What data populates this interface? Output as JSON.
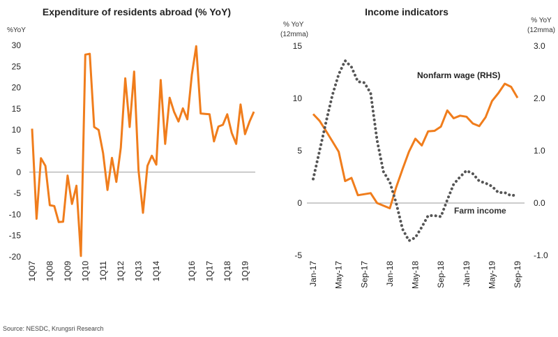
{
  "source": "Source: NESDC, Krungsri Research",
  "chart_data": [
    {
      "type": "line",
      "title": "Expenditure of residents abroad (% YoY)",
      "ylabel": "%YoY",
      "ylim": [
        -20,
        30
      ],
      "yticks": [
        "30",
        "25",
        "20",
        "15",
        "10",
        "5",
        "0",
        "-5",
        "-10",
        "-15",
        "-20"
      ],
      "ytick_values": [
        30,
        25,
        20,
        15,
        10,
        5,
        0,
        -5,
        -10,
        -15,
        -20
      ],
      "xtick_labels": [
        "1Q07",
        "1Q08",
        "1Q09",
        "1Q10",
        "1Q11",
        "1Q12",
        "1Q13",
        "1Q14",
        "1Q16",
        "1Q17",
        "1Q18",
        "1Q19"
      ],
      "xtick_index": [
        0,
        4,
        8,
        12,
        16,
        20,
        24,
        28,
        36,
        40,
        44,
        48
      ],
      "series": [
        {
          "name": "Expenditure of residents abroad",
          "color": "#F07D1C",
          "values": [
            10.3,
            -11.0,
            3.3,
            1.5,
            -7.8,
            -8.0,
            -11.8,
            -11.7,
            -0.8,
            -7.5,
            -3.2,
            -19.8,
            27.8,
            28.0,
            10.7,
            10.0,
            4.5,
            -4.2,
            3.4,
            -2.3,
            5.8,
            22.2,
            10.7,
            23.8,
            0.5,
            -9.6,
            1.5,
            3.9,
            1.8,
            21.8,
            6.7,
            17.6,
            14.3,
            12.0,
            15.1,
            12.5,
            23.0,
            29.8,
            13.9,
            13.8,
            13.7,
            7.3,
            10.8,
            11.2,
            13.7,
            9.3,
            6.7,
            16.0,
            9.0,
            11.9,
            14.3
          ]
        }
      ]
    },
    {
      "type": "line",
      "title": "Income indicators",
      "ylabel_left": "% YoY",
      "ylabel_left_sub": "(12mma)",
      "ylabel_right": "% YoY",
      "ylabel_right_sub": "(12mma)",
      "ylim_left": [
        -5,
        15
      ],
      "ylim_right": [
        -1.0,
        3.0
      ],
      "yticks_left": [
        "15",
        "10",
        "5",
        "0",
        "-5"
      ],
      "ytick_left_values": [
        15,
        10,
        5,
        0,
        -5
      ],
      "yticks_right": [
        "3.0",
        "2.0",
        "1.0",
        "0.0",
        "-1.0"
      ],
      "ytick_right_values": [
        3.0,
        2.0,
        1.0,
        0.0,
        -1.0
      ],
      "xtick_labels": [
        "Jan-17",
        "May-17",
        "Sep-17",
        "Jan-18",
        "May-18",
        "Sep-18",
        "Jan-19",
        "May-19",
        "Sep-19"
      ],
      "xtick_index": [
        0,
        4,
        8,
        12,
        16,
        20,
        24,
        28,
        32
      ],
      "series": [
        {
          "name": "Nonfarm wage (RHS)",
          "axis": "right",
          "style": "solid",
          "color": "#F07D1C",
          "values": [
            1.7,
            1.57,
            1.38,
            1.18,
            0.98,
            0.42,
            0.48,
            0.15,
            0.17,
            0.19,
            0.0,
            -0.05,
            -0.1,
            0.3,
            0.65,
            0.98,
            1.23,
            1.1,
            1.37,
            1.38,
            1.46,
            1.77,
            1.62,
            1.67,
            1.65,
            1.52,
            1.47,
            1.64,
            1.95,
            2.1,
            2.28,
            2.22,
            2.01
          ]
        },
        {
          "name": "Farm income",
          "axis": "left",
          "style": "dotted",
          "color": "#555555",
          "values": [
            2.3,
            5.0,
            7.7,
            10.3,
            12.3,
            13.6,
            13.0,
            11.6,
            11.5,
            10.5,
            6.0,
            3.0,
            2.0,
            0.0,
            -2.5,
            -3.6,
            -3.3,
            -2.3,
            -1.2,
            -1.2,
            -1.3,
            0.3,
            1.8,
            2.5,
            3.1,
            2.8,
            2.1,
            1.9,
            1.6,
            1.0,
            1.0,
            0.7,
            0.8
          ]
        }
      ],
      "annotations": [
        "Nonfarm wage (RHS)",
        "Farm income"
      ]
    }
  ]
}
